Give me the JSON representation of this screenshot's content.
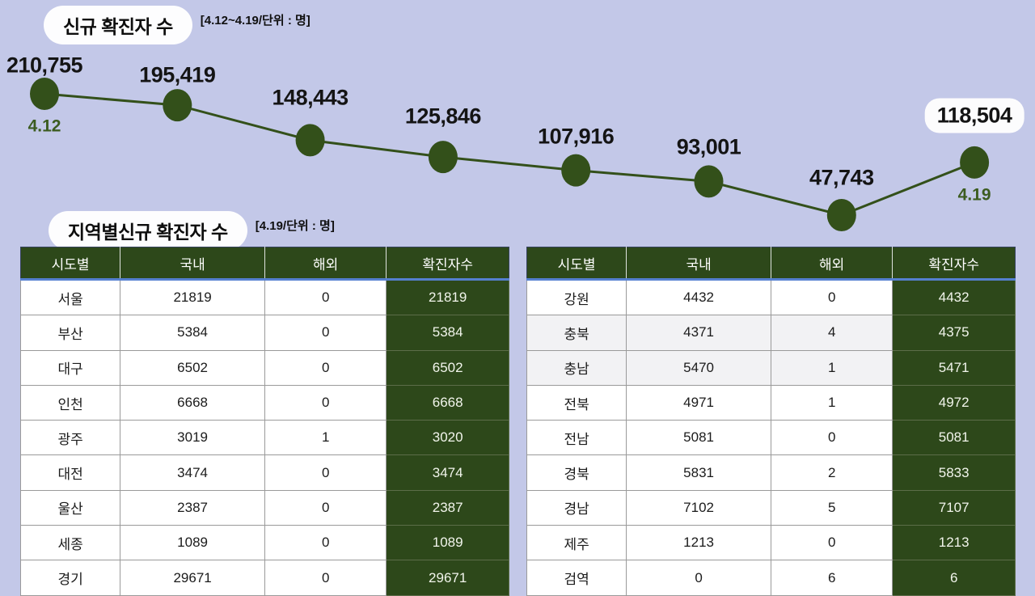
{
  "page": {
    "background_color": "#c3c8e8",
    "accent_green": "#2d481a",
    "chart_green": "#33501a",
    "header_underline_blue": "#5580d0"
  },
  "regional": {
    "title": "지역별신규 확진자 수",
    "subtitle": "[4.19/단위 : 명]"
  },
  "chart_data": [
    {
      "type": "line",
      "title": "신규 확진자 수",
      "subtitle": "[4.12~4.19/단위 : 명]",
      "values": [
        210755,
        195419,
        148443,
        125846,
        107916,
        93001,
        47743,
        118504
      ],
      "point_labels": [
        "210,755",
        "195,419",
        "148,443",
        "125,846",
        "107,916",
        "93,001",
        "47,743",
        "118,504"
      ],
      "first_date_label": "4.12",
      "last_date_label": "4.19",
      "last_point_boxed": true,
      "line_color": "#33501a",
      "label_color": "#141414",
      "legend": "none",
      "grid": "off"
    },
    {
      "type": "table",
      "columns": [
        "시도별",
        "국내",
        "해외",
        "확진자수"
      ],
      "rows": [
        [
          "서울",
          21819,
          0,
          21819
        ],
        [
          "부산",
          5384,
          0,
          5384
        ],
        [
          "대구",
          6502,
          0,
          6502
        ],
        [
          "인천",
          6668,
          0,
          6668
        ],
        [
          "광주",
          3019,
          1,
          3020
        ],
        [
          "대전",
          3474,
          0,
          3474
        ],
        [
          "울산",
          2387,
          0,
          2387
        ],
        [
          "세종",
          1089,
          0,
          1089
        ],
        [
          "경기",
          29671,
          0,
          29671
        ]
      ],
      "shaded_rows": []
    },
    {
      "type": "table",
      "columns": [
        "시도별",
        "국내",
        "해외",
        "확진자수"
      ],
      "rows": [
        [
          "강원",
          4432,
          0,
          4432
        ],
        [
          "충북",
          4371,
          4,
          4375
        ],
        [
          "충남",
          5470,
          1,
          5471
        ],
        [
          "전북",
          4971,
          1,
          4972
        ],
        [
          "전남",
          5081,
          0,
          5081
        ],
        [
          "경북",
          5831,
          2,
          5833
        ],
        [
          "경남",
          7102,
          5,
          7107
        ],
        [
          "제주",
          1213,
          0,
          1213
        ],
        [
          "검역",
          0,
          6,
          6
        ]
      ],
      "shaded_rows": [
        1,
        2
      ]
    }
  ]
}
